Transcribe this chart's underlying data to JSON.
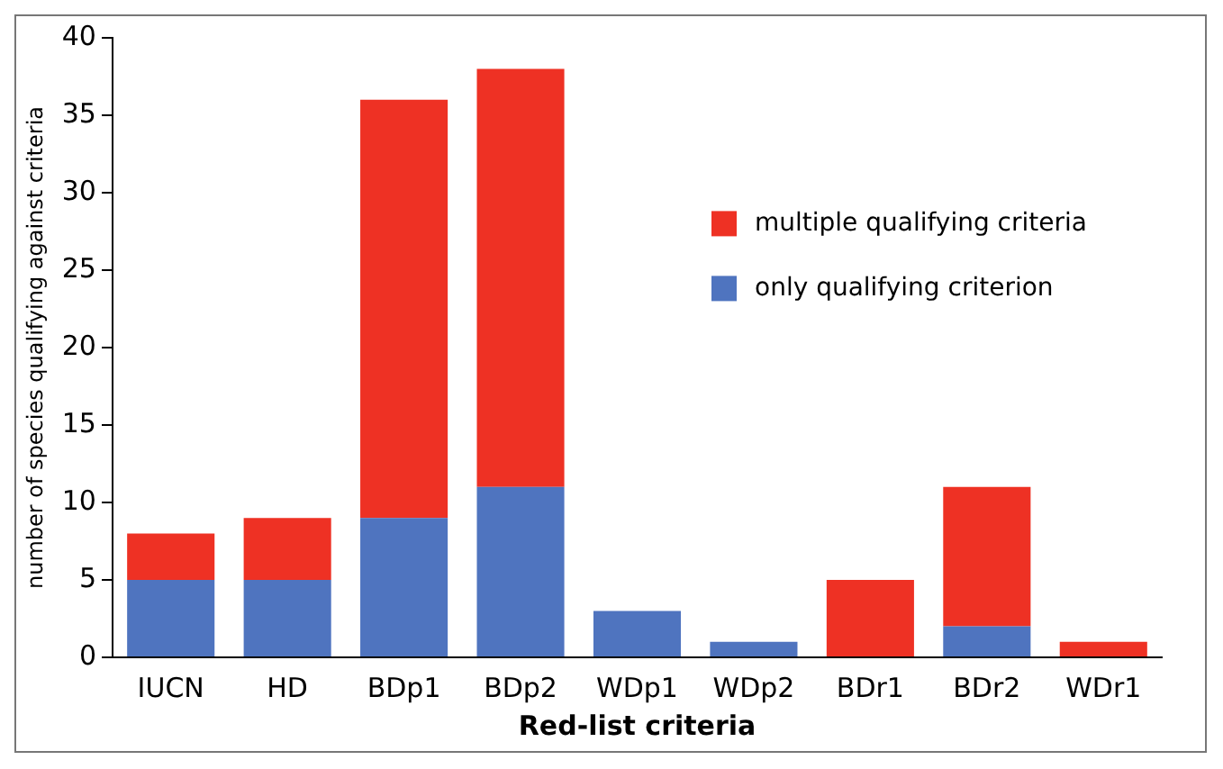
{
  "chart_data": {
    "type": "bar",
    "stacked": true,
    "xlabel": "Red-list criteria",
    "ylabel": "number of species qualifying against criteria",
    "categories": [
      "IUCN",
      "HD",
      "BDp1",
      "BDp2",
      "WDp1",
      "WDp2",
      "BDr1",
      "BDr2",
      "WDr1"
    ],
    "series": [
      {
        "name": "only qualifying criterion",
        "color": "#4f74bf",
        "values": [
          5,
          5,
          9,
          11,
          3,
          1,
          0,
          2,
          0
        ]
      },
      {
        "name": "multiple qualifying criteria",
        "color": "#ee3124",
        "values": [
          3,
          4,
          27,
          27,
          0,
          0,
          5,
          9,
          1
        ]
      }
    ],
    "ylim": [
      0,
      40
    ],
    "yticks": [
      0,
      5,
      10,
      15,
      20,
      25,
      30,
      35,
      40
    ],
    "grid": false,
    "legend": "top right"
  }
}
